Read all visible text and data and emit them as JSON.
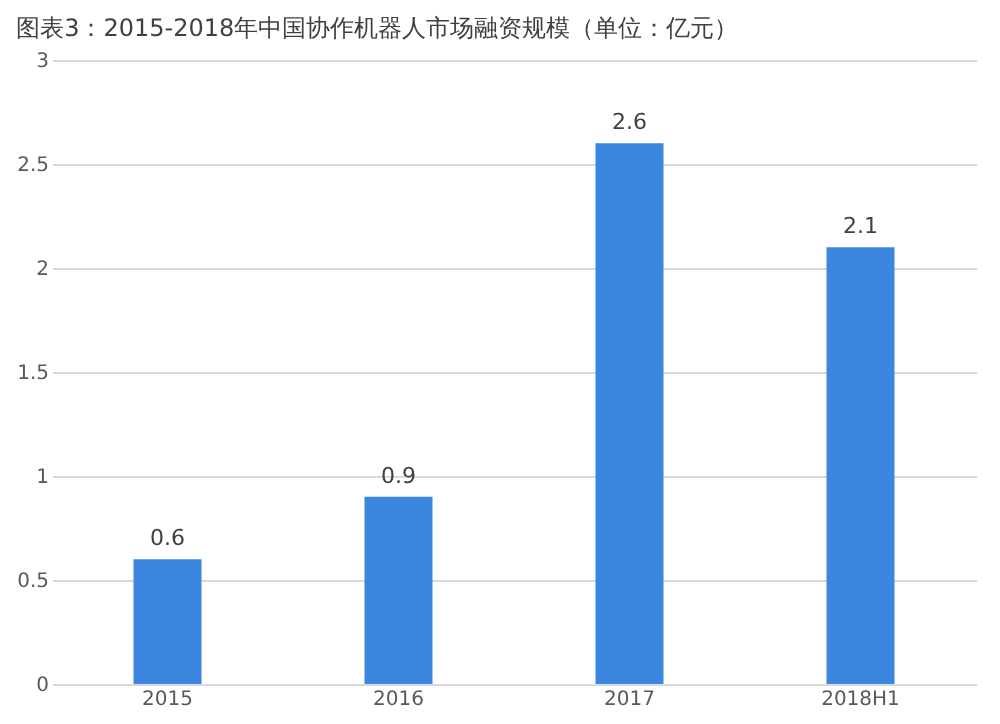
{
  "chart_data": {
    "type": "bar",
    "title": "图表3：2015-2018年中国协作机器人市场融资规模（单位：亿元）",
    "categories": [
      "2015",
      "2016",
      "2017",
      "2018H1"
    ],
    "values": [
      0.6,
      0.9,
      2.6,
      2.1
    ],
    "color": "#3d86e0",
    "ylim": [
      0,
      3
    ],
    "yticks": [
      0,
      0.5,
      1,
      1.5,
      2,
      2.5,
      3
    ],
    "grid": "y",
    "data_labels": true
  }
}
